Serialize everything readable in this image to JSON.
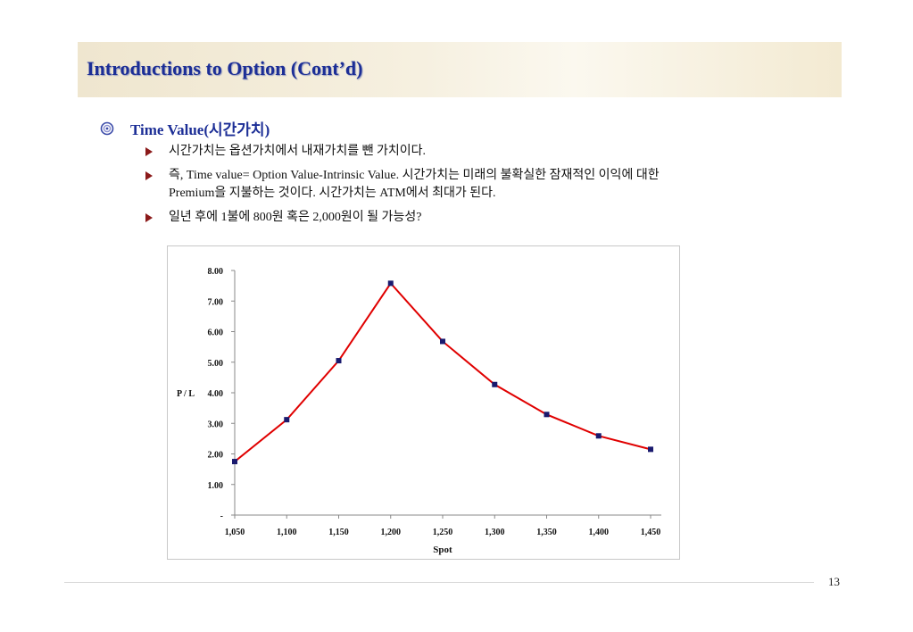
{
  "slide": {
    "title": "Introductions to Option (Cont’d)",
    "bullet": "Time Value(시간가치)",
    "sub_bullets": [
      "시간가치는 옵션가치에서 내재가치를 뺀 가치이다.",
      "즉, Time value= Option Value-Intrinsic Value. 시간가치는 미래의 불확실한 잠재적인 이익에 대한",
      "Premium을 지불하는 것이다. 시간가치는 ATM에서 최대가 된다.",
      "일년 후에 1불에 800원 혹은 2,000원이 될 가능성?"
    ],
    "page_number": "13"
  },
  "colors": {
    "title": "#1c2e96",
    "line": "#e00000",
    "marker": "#1a1a6e"
  },
  "chart_data": {
    "type": "line",
    "x": [
      "1,050",
      "1,100",
      "1,150",
      "1,200",
      "1,250",
      "1,300",
      "1,350",
      "1,400",
      "1,450"
    ],
    "series": [
      {
        "values": [
          1.75,
          3.12,
          5.05,
          7.58,
          5.68,
          4.27,
          3.29,
          2.59,
          2.15
        ]
      }
    ],
    "y_ticks": [
      "-",
      "1.00",
      "2.00",
      "3.00",
      "4.00",
      "5.00",
      "6.00",
      "7.00",
      "8.00"
    ],
    "ylim": [
      0,
      8
    ],
    "xlabel": "Spot",
    "ylabel": "P / L",
    "grid": false,
    "marker": "square"
  }
}
